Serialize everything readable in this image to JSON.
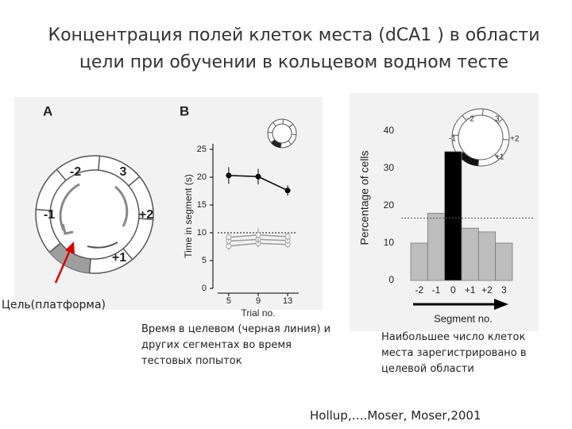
{
  "title": "Концентрация полей клеток места (dCA1 ) в области цели при обучении в кольцевом водном тесте",
  "panel_a": {
    "label": "A",
    "segments": [
      "-2",
      "3",
      "-1",
      "+2",
      "+1"
    ],
    "target_label": "Цель(платформа)"
  },
  "chart_data": [
    {
      "type": "line",
      "panel_label": "B",
      "y_label": "Time in segment (s)",
      "x_label": "Trial no.",
      "x": [
        5,
        9,
        13
      ],
      "xlim": [
        3.5,
        14.5
      ],
      "xticks": [
        5,
        9,
        13
      ],
      "ylim": [
        0,
        26
      ],
      "yticks": [
        0,
        5,
        10,
        15,
        20,
        25
      ],
      "chance_level": 10,
      "series": [
        {
          "color": "#000000",
          "values": [
            20.3,
            20.1,
            17.6
          ],
          "error": [
            1.5,
            1.4,
            0.9
          ]
        },
        {
          "color": "#9a9a9a",
          "values": [
            9.2,
            9.6,
            9.3
          ],
          "error": [
            0.8,
            1.2,
            0.8
          ]
        },
        {
          "color": "#9a9a9a",
          "values": [
            8.5,
            8.8,
            8.6
          ],
          "error": [
            0.7,
            0.8,
            0.7
          ]
        },
        {
          "color": "#9a9a9a",
          "values": [
            7.6,
            8.1,
            7.9
          ],
          "error": [
            0.7,
            0.7,
            0.6
          ]
        }
      ],
      "caption": "Время в целевом (черная линия) и других сегментах во время тестовых попыток"
    },
    {
      "type": "bar",
      "y_label": "Percentage of cells",
      "x_label": "Segment no.",
      "categories": [
        "-2",
        "-1",
        "0",
        "+1",
        "+2",
        "3"
      ],
      "values": [
        10,
        18,
        34.5,
        14,
        13,
        10
      ],
      "colors": [
        "#bdbdbd",
        "#bdbdbd",
        "#000000",
        "#bdbdbd",
        "#bdbdbd",
        "#bdbdbd"
      ],
      "ylim": [
        0,
        40
      ],
      "yticks": [
        0,
        10,
        20,
        30,
        40
      ],
      "chance_level": 16.7,
      "caption": "Наибольшее число клеток места зарегистрировано в целевой области"
    }
  ],
  "citation": "Hollup,….Moser, Moser,2001"
}
